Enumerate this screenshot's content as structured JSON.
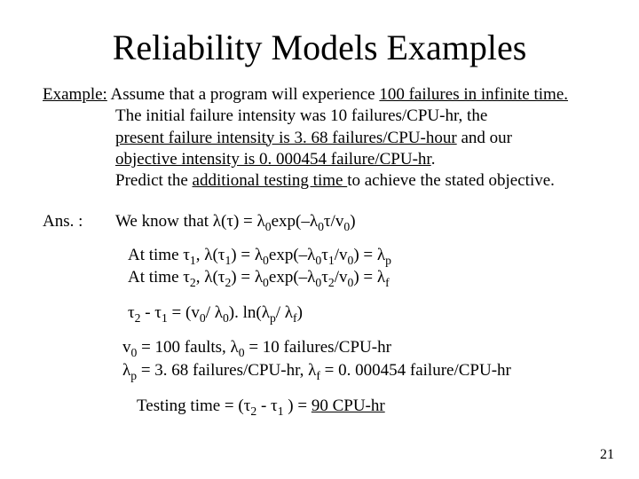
{
  "title": "Reliability Models Examples",
  "ex_label": "Example:",
  "ex_l1_a": " Assume that a program will experience ",
  "ex_l1_u": "100 failures in infinite time.",
  "ex_l2": "The initial failure intensity was 10 failures/CPU-hr,  the",
  "ex_l3_a": "present failure intensity is 3. 68 failures/CPU-hour",
  "ex_l3_b": " and our",
  "ex_l4_a": " objective intensity is 0. 000454 failure/CPU-hr",
  "ex_l4_b": ".",
  "ex_l5_a": "Predict the ",
  "ex_l5_u": "additional testing time ",
  "ex_l5_b": "to achieve the stated objective.",
  "ans_label": "Ans. :",
  "ans_line": "We know that λ(τ) = λ",
  "ans_line_b": "exp(–λ",
  "ans_line_c": "τ/v",
  "ans_line_d": ")",
  "at1_a": "At time τ",
  "at1_b": ", λ(τ",
  "at1_c": ") = λ",
  "at1_d": "exp(–λ",
  "at1_e": "τ",
  "at1_f": "/v",
  "at1_g": ") = λ",
  "eq_a": "τ",
  "eq_b": "  -  τ",
  "eq_c": " = (v",
  "eq_d": "/ λ",
  "eq_e": "). ln(λ",
  "eq_f": "/ λ",
  "eq_g": ")",
  "vals_l1_a": "v",
  "vals_l1_b": " = 100 faults,  λ",
  "vals_l1_c": "  = 10 failures/CPU-hr",
  "vals_l2_a": "λ",
  "vals_l2_b": " = 3. 68 failures/CPU-hr,     λ",
  "vals_l2_c": " = 0. 000454 failure/CPU-hr",
  "tt_a": "Testing time = (τ",
  "tt_b": "  -  τ",
  "tt_c": " ) = ",
  "tt_u": "90 CPU-hr",
  "s0": "0",
  "s1": "1",
  "s2": "2",
  "sp": "p",
  "sf": "f",
  "pagenum": "21"
}
